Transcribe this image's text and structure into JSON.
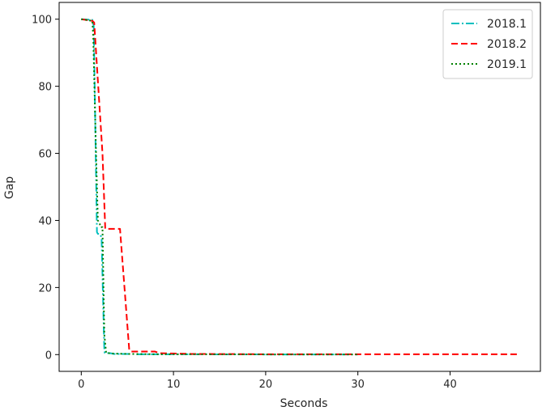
{
  "chart_data": {
    "type": "line",
    "xlabel": "Seconds",
    "ylabel": "Gap",
    "xlim": [
      -2.4,
      49.8
    ],
    "ylim": [
      -5,
      105
    ],
    "xticks": [
      0,
      10,
      20,
      30,
      40
    ],
    "yticks": [
      0,
      20,
      40,
      60,
      80,
      100
    ],
    "grid": false,
    "legend_position": "top-right",
    "series": [
      {
        "name": "2018.1",
        "color": "#00bfbf",
        "dash": "dashdot",
        "x": [
          0,
          1.2,
          1.35,
          1.7,
          1.8,
          2.0,
          2.2,
          2.5,
          2.55,
          3.2,
          3.5,
          5.5,
          6.0,
          10,
          20,
          30
        ],
        "y": [
          100,
          99.8,
          98,
          36.5,
          36,
          36,
          35,
          1.2,
          0.5,
          0.4,
          0.2,
          0.2,
          0.1,
          0.1,
          0.05,
          0.05
        ]
      },
      {
        "name": "2018.2",
        "color": "#ff0000",
        "dash": "dashed",
        "x": [
          0,
          1.2,
          1.4,
          2.3,
          2.6,
          4.0,
          4.2,
          5.2,
          5.4,
          8.0,
          8.5,
          12,
          20,
          30,
          40,
          47.5
        ],
        "y": [
          100,
          99.5,
          99,
          60,
          37.5,
          37.5,
          37.5,
          1.5,
          0.9,
          0.9,
          0.4,
          0.2,
          0.1,
          0.1,
          0.1,
          0.1
        ]
      },
      {
        "name": "2019.1",
        "color": "#008000",
        "dash": "dotted",
        "x": [
          0,
          1.2,
          1.3,
          1.6,
          1.8,
          2.0,
          2.1,
          2.3,
          2.5,
          2.7,
          3.5,
          5,
          8,
          10,
          20,
          30
        ],
        "y": [
          100,
          99.5,
          95,
          60,
          40,
          39,
          38,
          38,
          6,
          0.5,
          0.3,
          0.2,
          0.1,
          0.1,
          0.05,
          0.05
        ]
      }
    ]
  }
}
